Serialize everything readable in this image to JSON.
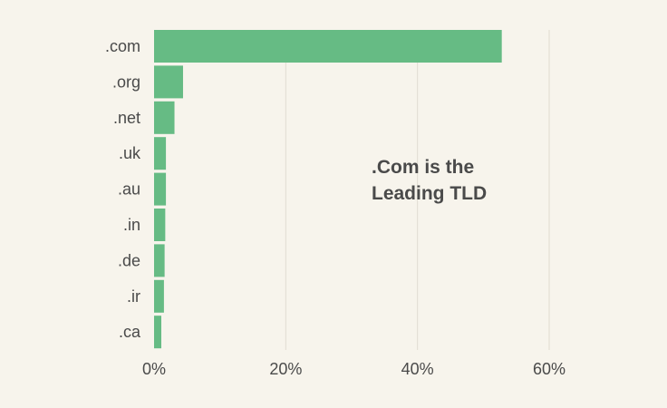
{
  "chart_data": {
    "type": "bar",
    "orientation": "horizontal",
    "categories": [
      ".com",
      ".org",
      ".net",
      ".uk",
      ".au",
      ".in",
      ".de",
      ".ir",
      ".ca"
    ],
    "values": [
      52.8,
      4.4,
      3.1,
      1.8,
      1.8,
      1.7,
      1.6,
      1.5,
      1.1
    ],
    "xlim": [
      0,
      60
    ],
    "xticks": [
      0,
      20,
      40,
      60
    ],
    "xtick_labels": [
      "0%",
      "20%",
      "40%",
      "60%"
    ],
    "grid": "vertical",
    "bar_color": "#66bb84",
    "annotation": [
      ".Com is the",
      "Leading TLD"
    ],
    "legend": "none"
  }
}
